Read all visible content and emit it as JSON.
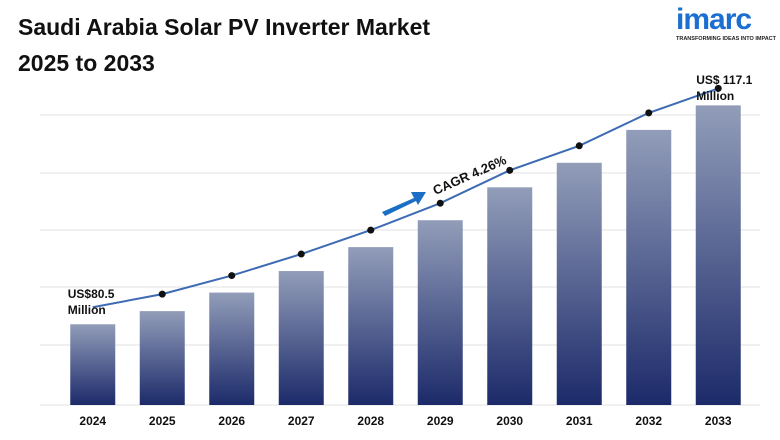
{
  "chart_data": {
    "type": "bar",
    "title": "Saudi Arabia Solar PV Inverter Market",
    "subtitle": "2025 to 2033",
    "categories": [
      "2024",
      "2025",
      "2026",
      "2027",
      "2028",
      "2029",
      "2030",
      "2031",
      "2032",
      "2033"
    ],
    "values": [
      80.5,
      82.7,
      85.8,
      89.4,
      93.4,
      97.9,
      103.4,
      107.5,
      113.0,
      117.1
    ],
    "value_labels": [
      "US$80.5 Million",
      null,
      null,
      null,
      null,
      null,
      null,
      null,
      null,
      "US$ 117.1 Million"
    ],
    "ylim": [
      67,
      118
    ],
    "color": "#1c2a6a",
    "line_color": "#3d6bb3",
    "annotation": "CAGR 4.26%",
    "logo": {
      "name": "imarc",
      "tagline": "TRANSFORMING IDEAS INTO IMPACT"
    }
  }
}
